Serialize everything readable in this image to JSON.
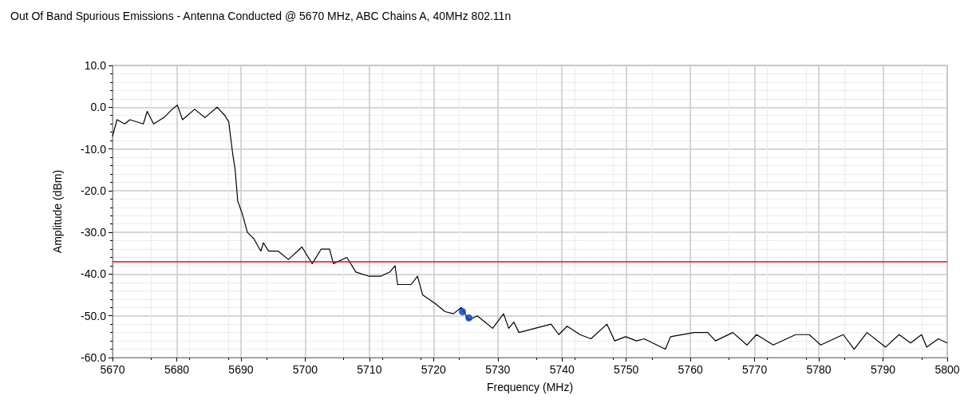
{
  "chart_data": {
    "type": "line",
    "title": "Out Of Band Spurious Emissions - Antenna Conducted @ 5670 MHz, ABC Chains A, 40MHz 802.11n",
    "xlabel": "Frequency (MHz)",
    "ylabel": "Amplitude (dBm)",
    "xlim": [
      5670,
      5800
    ],
    "xticks": [
      5670,
      5680,
      5690,
      5700,
      5710,
      5720,
      5730,
      5740,
      5750,
      5760,
      5770,
      5780,
      5790,
      5800
    ],
    "ylim": [
      -60,
      10
    ],
    "yticks": [
      {
        "value": -60,
        "label": "-60.0"
      },
      {
        "value": -50,
        "label": "-50.0"
      },
      {
        "value": -40,
        "label": "-40.0"
      },
      {
        "value": -30,
        "label": "-30.0"
      },
      {
        "value": -20,
        "label": "-20.0"
      },
      {
        "value": -10,
        "label": "-10.0"
      },
      {
        "value": 0,
        "label": "0.0"
      },
      {
        "value": 10,
        "label": "10.0"
      }
    ],
    "grid": true,
    "ref_lines": [
      {
        "axis": "y",
        "value": -37,
        "color": "#ff0000"
      }
    ],
    "series": [
      {
        "color": "#000000",
        "marker": "none",
        "x": [
          5670,
          5670.7,
          5671.9,
          5672.7,
          5674.8,
          5675.4,
          5676.4,
          5678,
          5679.3,
          5680.1,
          5680.9,
          5682.8,
          5684.4,
          5686.3,
          5687.5,
          5688.1,
          5688.7,
          5689.1,
          5689.5,
          5690.2,
          5691,
          5692,
          5693.1,
          5693.5,
          5694.3,
          5695.8,
          5697.4,
          5699.5,
          5701.1,
          5702.5,
          5703.8,
          5704.4,
          5706.5,
          5707.9,
          5709.9,
          5711.8,
          5713.2,
          5714,
          5714.4,
          5716.5,
          5717.5,
          5718.3,
          5720.2,
          5721.8,
          5723.1,
          5724.3,
          5725.5,
          5726.8,
          5728,
          5729.2,
          5730.9,
          5731.7,
          5732.5,
          5733.3,
          5735.8,
          5738.3,
          5739.5,
          5740.8,
          5742.8,
          5744.5,
          5747,
          5748.2,
          5749.9,
          5751.6,
          5752.8,
          5756.1,
          5756.9,
          5760.6,
          5762.7,
          5763.9,
          5766.6,
          5768.8,
          5770.3,
          5772.9,
          5776.4,
          5778.5,
          5780.3,
          5783.8,
          5785.5,
          5787.5,
          5790.4,
          5792.5,
          5794.3,
          5796,
          5796.8,
          5798.6,
          5800
        ],
        "values": [
          -7,
          -3,
          -4,
          -3,
          -4,
          -1,
          -4,
          -2.5,
          -0.5,
          0.5,
          -3,
          -0.5,
          -2.5,
          0,
          -2,
          -3.5,
          -11,
          -15,
          -22.5,
          -25.5,
          -30,
          -31.5,
          -34.5,
          -32.5,
          -34.5,
          -34.5,
          -36.5,
          -33.5,
          -37.5,
          -34,
          -34,
          -37.5,
          -36,
          -39.5,
          -40.5,
          -40.5,
          -39.5,
          -38,
          -42.5,
          -42.5,
          -40.5,
          -45,
          -47,
          -49,
          -49.5,
          -48,
          -51,
          -50,
          -51.5,
          -53,
          -49.5,
          -53,
          -51.5,
          -54,
          -53,
          -52,
          -54.5,
          -52.5,
          -54.5,
          -55.5,
          -52,
          -56,
          -55,
          -56,
          -55.5,
          -58,
          -55,
          -54,
          -54,
          -56,
          -54,
          -57,
          -54.5,
          -57,
          -54.5,
          -54.5,
          -57,
          -54.5,
          -58,
          -54,
          -57.5,
          -54.5,
          -56.5,
          -54.5,
          -57.5,
          -55.5,
          -56.5
        ]
      },
      {
        "type": "scatter",
        "color": "#0040c0",
        "marker": "circle",
        "x": [
          5724.5,
          5725.5
        ],
        "values": [
          -49,
          -50.5
        ]
      }
    ]
  }
}
